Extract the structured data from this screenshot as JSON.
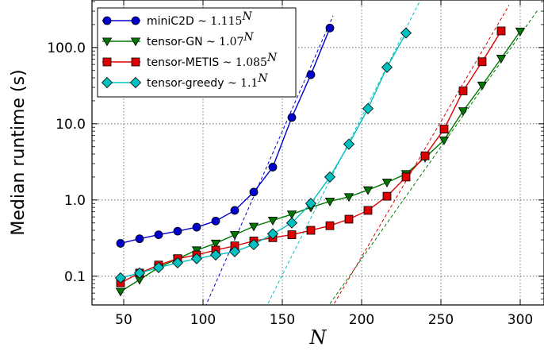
{
  "chart_data": {
    "type": "line",
    "xlabel": "N",
    "ylabel": "Median runtime (s)",
    "x_scale": "linear",
    "y_scale": "log",
    "xlim": [
      30,
      315
    ],
    "ylim": [
      0.042,
      420
    ],
    "x_ticks": [
      50,
      100,
      150,
      200,
      250,
      300
    ],
    "x_tick_labels": [
      "50",
      "100",
      "150",
      "200",
      "250",
      "300"
    ],
    "y_ticks": [
      0.1,
      1,
      10,
      100
    ],
    "y_tick_labels": [
      "0.1",
      "1.0",
      "10.0",
      "100.0"
    ],
    "grid": true,
    "legend_position": "top-left",
    "series": [
      {
        "name": "miniC2D",
        "legend_fit": "~ 1.115^N",
        "color": "#0000cc",
        "marker": "circle",
        "x": [
          48,
          60,
          72,
          84,
          96,
          108,
          120,
          132,
          144,
          156,
          168,
          180
        ],
        "y": [
          0.27,
          0.31,
          0.35,
          0.39,
          0.44,
          0.53,
          0.73,
          1.27,
          2.7,
          12.1,
          44,
          180
        ],
        "fit": {
          "color": "#0000cc",
          "x": [
            100,
            182
          ],
          "y": [
            0.034,
            261
          ]
        }
      },
      {
        "name": "tensor-GN",
        "legend_fit": "~ 1.07^N",
        "color": "#007700",
        "marker": "triangle-down",
        "x": [
          48,
          60,
          72,
          84,
          96,
          108,
          120,
          132,
          144,
          156,
          168,
          180,
          192,
          204,
          216,
          228,
          240,
          252,
          264,
          276,
          288,
          300
        ],
        "y": [
          0.063,
          0.09,
          0.13,
          0.17,
          0.22,
          0.27,
          0.35,
          0.45,
          0.54,
          0.65,
          0.8,
          0.96,
          1.1,
          1.35,
          1.7,
          2.2,
          3.6,
          6.1,
          14.7,
          32,
          72,
          163
        ],
        "fit": {
          "color": "#007700",
          "x": [
            178,
            311
          ],
          "y": [
            0.038,
            309
          ]
        }
      },
      {
        "name": "tensor-METIS",
        "legend_fit": "~ 1.085^N",
        "color": "#dd0000",
        "marker": "square",
        "x": [
          48,
          60,
          72,
          84,
          96,
          108,
          120,
          132,
          144,
          156,
          168,
          180,
          192,
          204,
          216,
          228,
          240,
          252,
          264,
          276,
          288
        ],
        "y": [
          0.082,
          0.11,
          0.14,
          0.17,
          0.19,
          0.22,
          0.25,
          0.29,
          0.32,
          0.35,
          0.4,
          0.46,
          0.56,
          0.73,
          1.12,
          2.0,
          3.8,
          8.5,
          27,
          65,
          165
        ],
        "fit": {
          "color": "#dd0000",
          "x": [
            181,
            293
          ],
          "y": [
            0.038,
            359
          ]
        }
      },
      {
        "name": "tensor-greedy",
        "legend_fit": "~ 1.1^N",
        "color": "#00c0c0",
        "marker": "diamond",
        "x": [
          48,
          60,
          72,
          84,
          96,
          108,
          120,
          132,
          144,
          156,
          168,
          180,
          192,
          204,
          216,
          228
        ],
        "y": [
          0.095,
          0.11,
          0.13,
          0.15,
          0.17,
          0.19,
          0.21,
          0.26,
          0.36,
          0.5,
          0.9,
          2.0,
          5.4,
          15.8,
          55,
          155
        ],
        "fit": {
          "color": "#00c0c0",
          "x": [
            141,
            237
          ],
          "y": [
            0.044,
            419
          ]
        }
      }
    ]
  }
}
